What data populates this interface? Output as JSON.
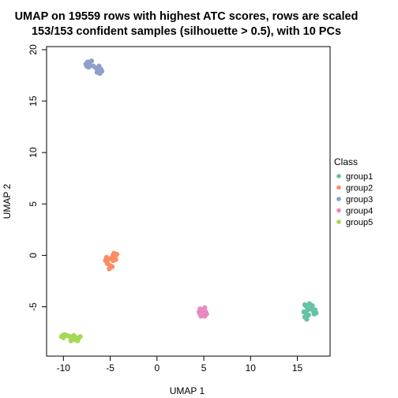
{
  "chart_data": {
    "type": "scatter",
    "title": "UMAP on 19559 rows with highest ATC scores, rows are scaled",
    "subtitle": "153/153 confident samples (silhouette > 0.5), with 10 PCs",
    "xlabel": "UMAP 1",
    "ylabel": "UMAP 2",
    "xlim": [
      -11.8,
      18.5
    ],
    "ylim": [
      -9.8,
      20.3
    ],
    "xticks": [
      -10,
      -5,
      0,
      5,
      10,
      15
    ],
    "yticks": [
      -5,
      0,
      5,
      10,
      15,
      20
    ],
    "grid": false,
    "legend": {
      "title": "Class",
      "position": "right"
    },
    "series": [
      {
        "name": "group1",
        "color": "#66C2A5",
        "points": [
          [
            15.8,
            -4.8
          ],
          [
            16.0,
            -5.0
          ],
          [
            16.3,
            -4.7
          ],
          [
            16.6,
            -4.9
          ],
          [
            16.1,
            -5.3
          ],
          [
            15.9,
            -5.6
          ],
          [
            16.2,
            -5.8
          ],
          [
            15.8,
            -6.0
          ],
          [
            16.7,
            -5.4
          ],
          [
            17.0,
            -5.6
          ],
          [
            16.8,
            -5.7
          ],
          [
            16.4,
            -5.2
          ],
          [
            15.7,
            -5.5
          ],
          [
            16.0,
            -6.2
          ],
          [
            16.9,
            -5.3
          ]
        ]
      },
      {
        "name": "group2",
        "color": "#FC8D62",
        "points": [
          [
            -4.7,
            0.0
          ],
          [
            -4.5,
            -0.1
          ],
          [
            -4.9,
            -0.3
          ],
          [
            -4.4,
            -0.4
          ],
          [
            -4.6,
            0.2
          ],
          [
            -5.2,
            -0.4
          ],
          [
            -5.5,
            -0.5
          ],
          [
            -5.3,
            -0.8
          ],
          [
            -5.0,
            -1.0
          ],
          [
            -5.1,
            -1.3
          ],
          [
            -4.8,
            -1.1
          ],
          [
            -5.4,
            -0.2
          ],
          [
            -4.3,
            0.1
          ],
          [
            -4.7,
            -0.5
          ]
        ]
      },
      {
        "name": "group3",
        "color": "#8DA0CB",
        "points": [
          [
            -7.6,
            18.6
          ],
          [
            -7.4,
            18.8
          ],
          [
            -7.2,
            18.5
          ],
          [
            -7.0,
            18.9
          ],
          [
            -7.3,
            18.3
          ],
          [
            -6.8,
            18.4
          ],
          [
            -6.5,
            18.2
          ],
          [
            -6.3,
            18.0
          ],
          [
            -6.1,
            17.7
          ],
          [
            -6.0,
            18.1
          ],
          [
            -6.4,
            17.8
          ],
          [
            -5.9,
            17.9
          ],
          [
            -6.2,
            18.4
          ],
          [
            -7.5,
            18.4
          ]
        ]
      },
      {
        "name": "group4",
        "color": "#E78AC3",
        "points": [
          [
            4.6,
            -5.2
          ],
          [
            4.9,
            -5.3
          ],
          [
            5.1,
            -5.1
          ],
          [
            4.5,
            -5.5
          ],
          [
            4.8,
            -5.6
          ],
          [
            5.2,
            -5.5
          ],
          [
            5.0,
            -5.8
          ],
          [
            4.7,
            -5.9
          ],
          [
            5.3,
            -5.7
          ],
          [
            4.9,
            -5.4
          ],
          [
            4.6,
            -5.7
          ],
          [
            5.1,
            -5.9
          ]
        ]
      },
      {
        "name": "group5",
        "color": "#A6D854",
        "points": [
          [
            -10.1,
            -7.8
          ],
          [
            -9.9,
            -7.7
          ],
          [
            -10.0,
            -8.0
          ],
          [
            -9.6,
            -7.8
          ],
          [
            -9.3,
            -7.9
          ],
          [
            -9.0,
            -8.1
          ],
          [
            -8.8,
            -8.2
          ],
          [
            -8.6,
            -8.0
          ],
          [
            -8.4,
            -8.1
          ],
          [
            -8.2,
            -7.9
          ],
          [
            -8.9,
            -7.8
          ],
          [
            -9.2,
            -8.3
          ],
          [
            -10.2,
            -7.9
          ],
          [
            -8.5,
            -8.3
          ]
        ]
      }
    ]
  }
}
